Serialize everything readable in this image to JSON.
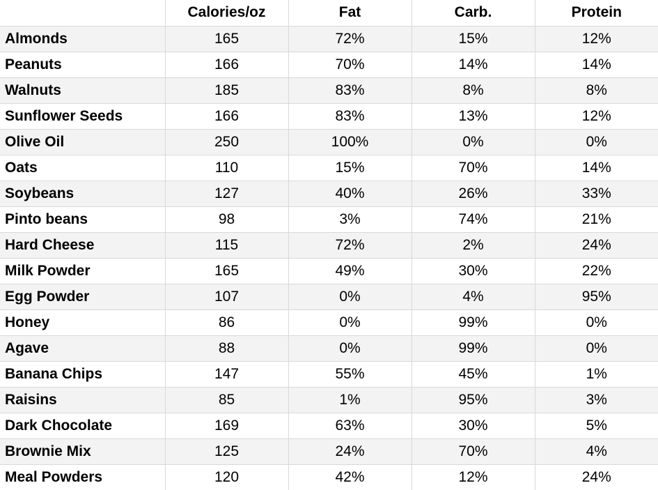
{
  "chart_data": {
    "type": "table",
    "columns": [
      "",
      "Calories/oz",
      "Fat",
      "Carb.",
      "Protein"
    ],
    "rows": [
      {
        "name": "Almonds",
        "values": [
          "165",
          "72%",
          "15%",
          "12%"
        ]
      },
      {
        "name": "Peanuts",
        "values": [
          "166",
          "70%",
          "14%",
          "14%"
        ]
      },
      {
        "name": "Walnuts",
        "values": [
          "185",
          "83%",
          "8%",
          "8%"
        ]
      },
      {
        "name": "Sunflower Seeds",
        "values": [
          "166",
          "83%",
          "13%",
          "12%"
        ]
      },
      {
        "name": "Olive Oil",
        "values": [
          "250",
          "100%",
          "0%",
          "0%"
        ]
      },
      {
        "name": "Oats",
        "values": [
          "110",
          "15%",
          "70%",
          "14%"
        ]
      },
      {
        "name": "Soybeans",
        "values": [
          "127",
          "40%",
          "26%",
          "33%"
        ]
      },
      {
        "name": "Pinto beans",
        "values": [
          "98",
          "3%",
          "74%",
          "21%"
        ]
      },
      {
        "name": "Hard Cheese",
        "values": [
          "115",
          "72%",
          "2%",
          "24%"
        ]
      },
      {
        "name": "Milk Powder",
        "values": [
          "165",
          "49%",
          "30%",
          "22%"
        ]
      },
      {
        "name": "Egg Powder",
        "values": [
          "107",
          "0%",
          "4%",
          "95%"
        ]
      },
      {
        "name": "Honey",
        "values": [
          "86",
          "0%",
          "99%",
          "0%"
        ]
      },
      {
        "name": "Agave",
        "values": [
          "88",
          "0%",
          "99%",
          "0%"
        ]
      },
      {
        "name": "Banana Chips",
        "values": [
          "147",
          "55%",
          "45%",
          "1%"
        ]
      },
      {
        "name": "Raisins",
        "values": [
          "85",
          "1%",
          "95%",
          "3%"
        ]
      },
      {
        "name": "Dark Chocolate",
        "values": [
          "169",
          "63%",
          "30%",
          "5%"
        ]
      },
      {
        "name": "Brownie Mix",
        "values": [
          "125",
          "24%",
          "70%",
          "4%"
        ]
      },
      {
        "name": "Meal Powders",
        "values": [
          "120",
          "42%",
          "12%",
          "24%"
        ]
      }
    ],
    "colors": {
      "stripe_background": "#f3f3f3",
      "plain_background": "#ffffff",
      "grid_line": "#d9d9d9",
      "text": "#000000"
    }
  }
}
